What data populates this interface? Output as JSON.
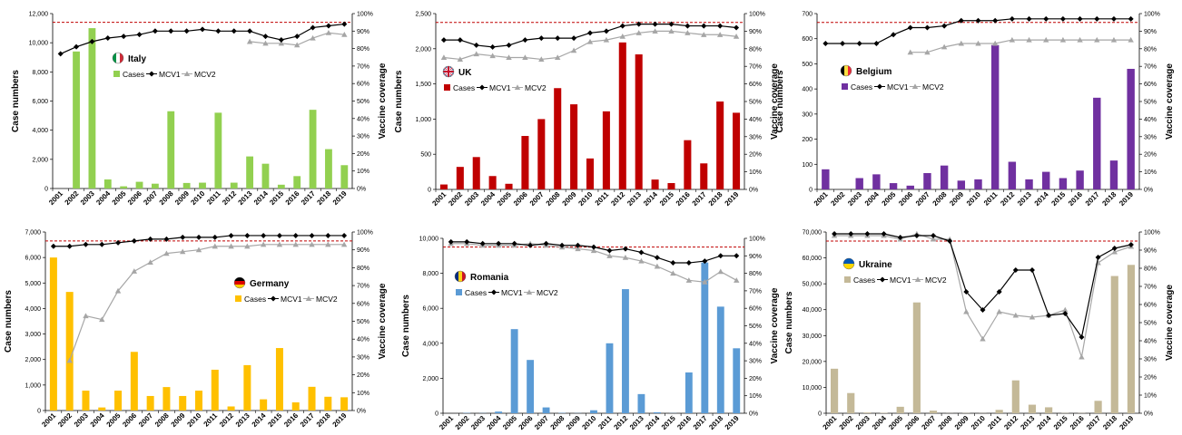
{
  "colors": {
    "mcv1": "#000000",
    "mcv2": "#a6a6a6",
    "target_line": "#c00000"
  },
  "chart_data": [
    {
      "type": "bar",
      "title": "Italy",
      "flag_icon": "italy-flag-icon",
      "years": [
        "2001",
        "2002",
        "2003",
        "2004",
        "2005",
        "2006",
        "2007",
        "2008",
        "2009",
        "2010",
        "2011",
        "2012",
        "2013",
        "2014",
        "2015",
        "2016",
        "2017",
        "2018",
        "2019"
      ],
      "cases": [
        0,
        9400,
        11000,
        620,
        150,
        460,
        330,
        5300,
        380,
        400,
        5200,
        400,
        2200,
        1700,
        260,
        850,
        5400,
        2700,
        1600
      ],
      "mcv1": [
        77,
        81,
        84,
        86,
        87,
        88,
        90,
        90,
        90,
        91,
        90,
        90,
        90,
        87,
        85,
        87,
        92,
        93,
        94
      ],
      "mcv2": [
        null,
        null,
        null,
        null,
        null,
        null,
        null,
        null,
        null,
        null,
        null,
        null,
        84,
        83,
        83,
        82,
        86,
        89,
        88
      ],
      "target": 95,
      "ylabel": "Case numbers",
      "y2label": "Vaccine coverage",
      "ylim": [
        0,
        12000
      ],
      "yticks": [
        "0",
        "2,000",
        "4,000",
        "6,000",
        "8,000",
        "10,000",
        "12,000"
      ],
      "y2ticks": [
        "0%",
        "10%",
        "20%",
        "30%",
        "40%",
        "50%",
        "60%",
        "70%",
        "80%",
        "90%",
        "100%"
      ],
      "bar_color": "#92d050",
      "legend": {
        "cases": "Cases",
        "mcv1": "MCV1",
        "mcv2": "MCV2"
      }
    },
    {
      "type": "bar",
      "title": "UK",
      "flag_icon": "uk-flag-icon",
      "years": [
        "2001",
        "2002",
        "2003",
        "2004",
        "2005",
        "2006",
        "2007",
        "2008",
        "2009",
        "2010",
        "2011",
        "2012",
        "2013",
        "2014",
        "2015",
        "2016",
        "2017",
        "2018",
        "2019"
      ],
      "cases": [
        70,
        320,
        460,
        190,
        80,
        760,
        1000,
        1440,
        1210,
        440,
        1110,
        2090,
        1920,
        140,
        90,
        700,
        370,
        1250,
        1090
      ],
      "mcv1": [
        85,
        85,
        82,
        81,
        82,
        85,
        86,
        86,
        86,
        89,
        90,
        93,
        94,
        94,
        94,
        93,
        93,
        93,
        92
      ],
      "mcv2": [
        75,
        74,
        77,
        76,
        75,
        75,
        74,
        75,
        79,
        84,
        85,
        87,
        89,
        90,
        90,
        89,
        88,
        88,
        87
      ],
      "target": 95,
      "ylabel": "Case numbers",
      "y2label": "Vaccine coverage",
      "ylim": [
        0,
        2500
      ],
      "yticks": [
        "0",
        "500",
        "1,000",
        "1,500",
        "2,000",
        "2,500"
      ],
      "y2ticks": [
        "0%",
        "10%",
        "20%",
        "30%",
        "40%",
        "50%",
        "60%",
        "70%",
        "80%",
        "90%",
        "100%"
      ],
      "bar_color": "#c00000",
      "legend": {
        "cases": "Cases",
        "mcv1": "MCV1",
        "mcv2": "MCV2"
      }
    },
    {
      "type": "bar",
      "title": "Belgium",
      "flag_icon": "belgium-flag-icon",
      "years": [
        "2001",
        "2002",
        "2003",
        "2004",
        "2005",
        "2006",
        "2007",
        "2008",
        "2009",
        "2010",
        "2011",
        "2012",
        "2013",
        "2014",
        "2015",
        "2016",
        "2017",
        "2018",
        "2019"
      ],
      "cases": [
        80,
        0,
        45,
        60,
        25,
        15,
        65,
        95,
        35,
        40,
        575,
        110,
        40,
        70,
        45,
        75,
        365,
        115,
        480
      ],
      "mcv1": [
        83,
        83,
        83,
        83,
        88,
        92,
        92,
        93,
        96,
        96,
        96,
        97,
        97,
        97,
        97,
        97,
        97,
        97,
        97
      ],
      "mcv2": [
        null,
        null,
        null,
        null,
        null,
        78,
        78,
        81,
        83,
        83,
        83,
        85,
        85,
        85,
        85,
        85,
        85,
        85,
        85
      ],
      "target": 95,
      "ylabel": "Case numbers",
      "y2label": "Vaccine coverage",
      "ylim": [
        0,
        700
      ],
      "yticks": [
        "0",
        "100",
        "200",
        "300",
        "400",
        "500",
        "600",
        "700"
      ],
      "y2ticks": [
        "0%",
        "10%",
        "20%",
        "30%",
        "40%",
        "50%",
        "60%",
        "70%",
        "80%",
        "90%",
        "100%"
      ],
      "bar_color": "#7030a0",
      "legend": {
        "cases": "Cases",
        "mcv1": "MCV1",
        "mcv2": "MCV2"
      }
    },
    {
      "type": "bar",
      "title": "Germany",
      "flag_icon": "germany-flag-icon",
      "years": [
        "2001",
        "2002",
        "2003",
        "2004",
        "2005",
        "2006",
        "2007",
        "2008",
        "2009",
        "2010",
        "2011",
        "2012",
        "2013",
        "2014",
        "2015",
        "2016",
        "2017",
        "2018",
        "2019"
      ],
      "cases": [
        6000,
        4650,
        780,
        120,
        780,
        2300,
        570,
        920,
        570,
        780,
        1600,
        160,
        1780,
        440,
        2450,
        320,
        930,
        540,
        520
      ],
      "mcv1": [
        92,
        92,
        93,
        93,
        94,
        95,
        96,
        96,
        97,
        97,
        97,
        98,
        98,
        98,
        98,
        98,
        98,
        98,
        98
      ],
      "mcv2": [
        null,
        28,
        53,
        51,
        67,
        78,
        83,
        88,
        89,
        90,
        92,
        92,
        92,
        93,
        93,
        93,
        93,
        93,
        93
      ],
      "target": 95,
      "ylabel": "Case numbers",
      "y2label": "Vaccine coverage",
      "ylim": [
        0,
        7000
      ],
      "yticks": [
        "0",
        "1,000",
        "2,000",
        "3,000",
        "4,000",
        "5,000",
        "6,000",
        "7,000"
      ],
      "y2ticks": [
        "0%",
        "10%",
        "20%",
        "30%",
        "40%",
        "50%",
        "60%",
        "70%",
        "80%",
        "90%",
        "100%"
      ],
      "bar_color": "#ffc000",
      "legend": {
        "cases": "Cases",
        "mcv1": "MCV1",
        "mcv2": "MCV2"
      }
    },
    {
      "type": "bar",
      "title": "Romania",
      "flag_icon": "romania-flag-icon",
      "years": [
        "2001",
        "2002",
        "2003",
        "2004",
        "2005",
        "2006",
        "2007",
        "2008",
        "2009",
        "2010",
        "2011",
        "2012",
        "2013",
        "2014",
        "2015",
        "2016",
        "2017",
        "2018",
        "2019"
      ],
      "cases": [
        0,
        20,
        10,
        100,
        5050,
        3200,
        350,
        20,
        10,
        180,
        4200,
        7450,
        1150,
        60,
        10,
        2450,
        9050,
        6400,
        3900
      ],
      "mcv1": [
        98,
        98,
        97,
        97,
        97,
        96,
        97,
        96,
        96,
        95,
        93,
        94,
        92,
        89,
        86,
        86,
        87,
        90,
        90
      ],
      "mcv2": [
        97,
        97,
        96,
        96,
        96,
        97,
        96,
        95,
        94,
        93,
        90,
        89,
        87,
        84,
        80,
        76,
        75,
        81,
        76
      ],
      "target": 95,
      "ylabel": "Case numbers",
      "y2label": "Vaccine coverage",
      "ylim": [
        0,
        10500
      ],
      "yticks": [
        "0",
        "2,000",
        "4,000",
        "6,000",
        "8,000",
        "10,000"
      ],
      "y2ticks": [
        "0%",
        "10%",
        "20%",
        "30%",
        "40%",
        "50%",
        "60%",
        "70%",
        "80%",
        "90%",
        "100%"
      ],
      "bar_color": "#5b9bd5",
      "legend": {
        "cases": "Cases",
        "mcv1": "MCV1",
        "mcv2": "MCV2"
      }
    },
    {
      "type": "bar",
      "title": "Ukraine",
      "flag_icon": "ukraine-flag-icon",
      "years": [
        "2001",
        "2002",
        "2003",
        "2004",
        "2005",
        "2006",
        "2007",
        "2008",
        "2009",
        "2010",
        "2011",
        "2012",
        "2013",
        "2014",
        "2015",
        "2016",
        "2017",
        "2018",
        "2019"
      ],
      "cases": [
        17200,
        7800,
        300,
        150,
        2500,
        42800,
        1000,
        50,
        100,
        60,
        1300,
        12700,
        3300,
        2300,
        100,
        90,
        4800,
        53000,
        57300
      ],
      "mcv1": [
        99,
        99,
        99,
        99,
        97,
        98,
        98,
        95,
        67,
        57,
        67,
        79,
        79,
        54,
        55,
        42,
        86,
        91,
        93
      ],
      "mcv2": [
        98,
        98,
        98,
        98,
        96,
        99,
        96,
        96,
        56,
        41,
        56,
        54,
        53,
        54,
        57,
        31,
        83,
        89,
        92
      ],
      "target": 95,
      "ylabel": "Case numbers",
      "y2label": "Vaccine coverage",
      "ylim": [
        0,
        70000
      ],
      "yticks": [
        "0",
        "10,000",
        "20,000",
        "30,000",
        "40,000",
        "50,000",
        "60,000",
        "70,000"
      ],
      "y2ticks": [
        "0%",
        "10%",
        "20%",
        "30%",
        "40%",
        "50%",
        "60%",
        "70%",
        "80%",
        "90%",
        "100%"
      ],
      "bar_color": "#c4b998",
      "legend": {
        "cases": "Cases",
        "mcv1": "MCV1",
        "mcv2": "MCV2"
      }
    }
  ]
}
